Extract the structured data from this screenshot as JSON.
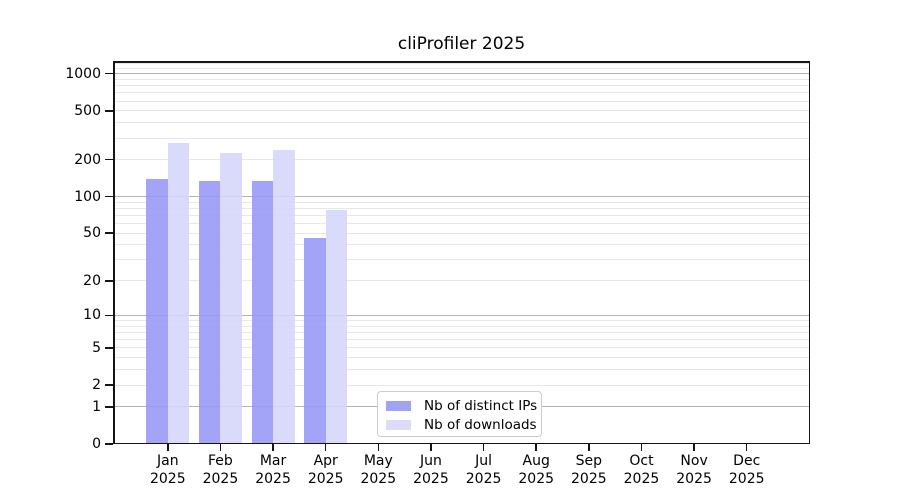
{
  "title": "cliProfiler 2025",
  "chart_data": {
    "type": "bar",
    "title": "cliProfiler 2025",
    "categories": [
      "Jan 2025",
      "Feb 2025",
      "Mar 2025",
      "Apr 2025",
      "May 2025",
      "Jun 2025",
      "Jul 2025",
      "Aug 2025",
      "Sep 2025",
      "Oct 2025",
      "Nov 2025",
      "Dec 2025"
    ],
    "series": [
      {
        "name": "Nb of distinct IPs",
        "color": "#a2a2f2",
        "fill_rgba": "rgba(150,150,246,0.88)",
        "values": [
          140,
          135,
          135,
          46,
          0,
          0,
          0,
          0,
          0,
          0,
          0,
          0
        ]
      },
      {
        "name": "Nb of downloads",
        "color": "#dcdcf9",
        "fill_rgba": "rgba(213,213,250,0.88)",
        "values": [
          272,
          225,
          238,
          78,
          0,
          0,
          0,
          0,
          0,
          0,
          0,
          0
        ]
      }
    ],
    "yscale": "log1p",
    "yticks": [
      0,
      1,
      2,
      5,
      10,
      20,
      50,
      100,
      200,
      500,
      1000
    ],
    "ylim": [
      0,
      1270
    ],
    "xlabel": "",
    "ylabel": "",
    "grid": true,
    "grid_major_at": [
      1,
      10,
      100,
      1000
    ],
    "legend_position": "lower center",
    "bar_layout": "grouped-side-by-side"
  },
  "colors": {
    "major_grid": "#b4b4b4",
    "minor_grid": "#e8e8e8",
    "spine": "#151515",
    "text": "#000000",
    "legend_border": "#cccccc",
    "background": "#ffffff"
  }
}
